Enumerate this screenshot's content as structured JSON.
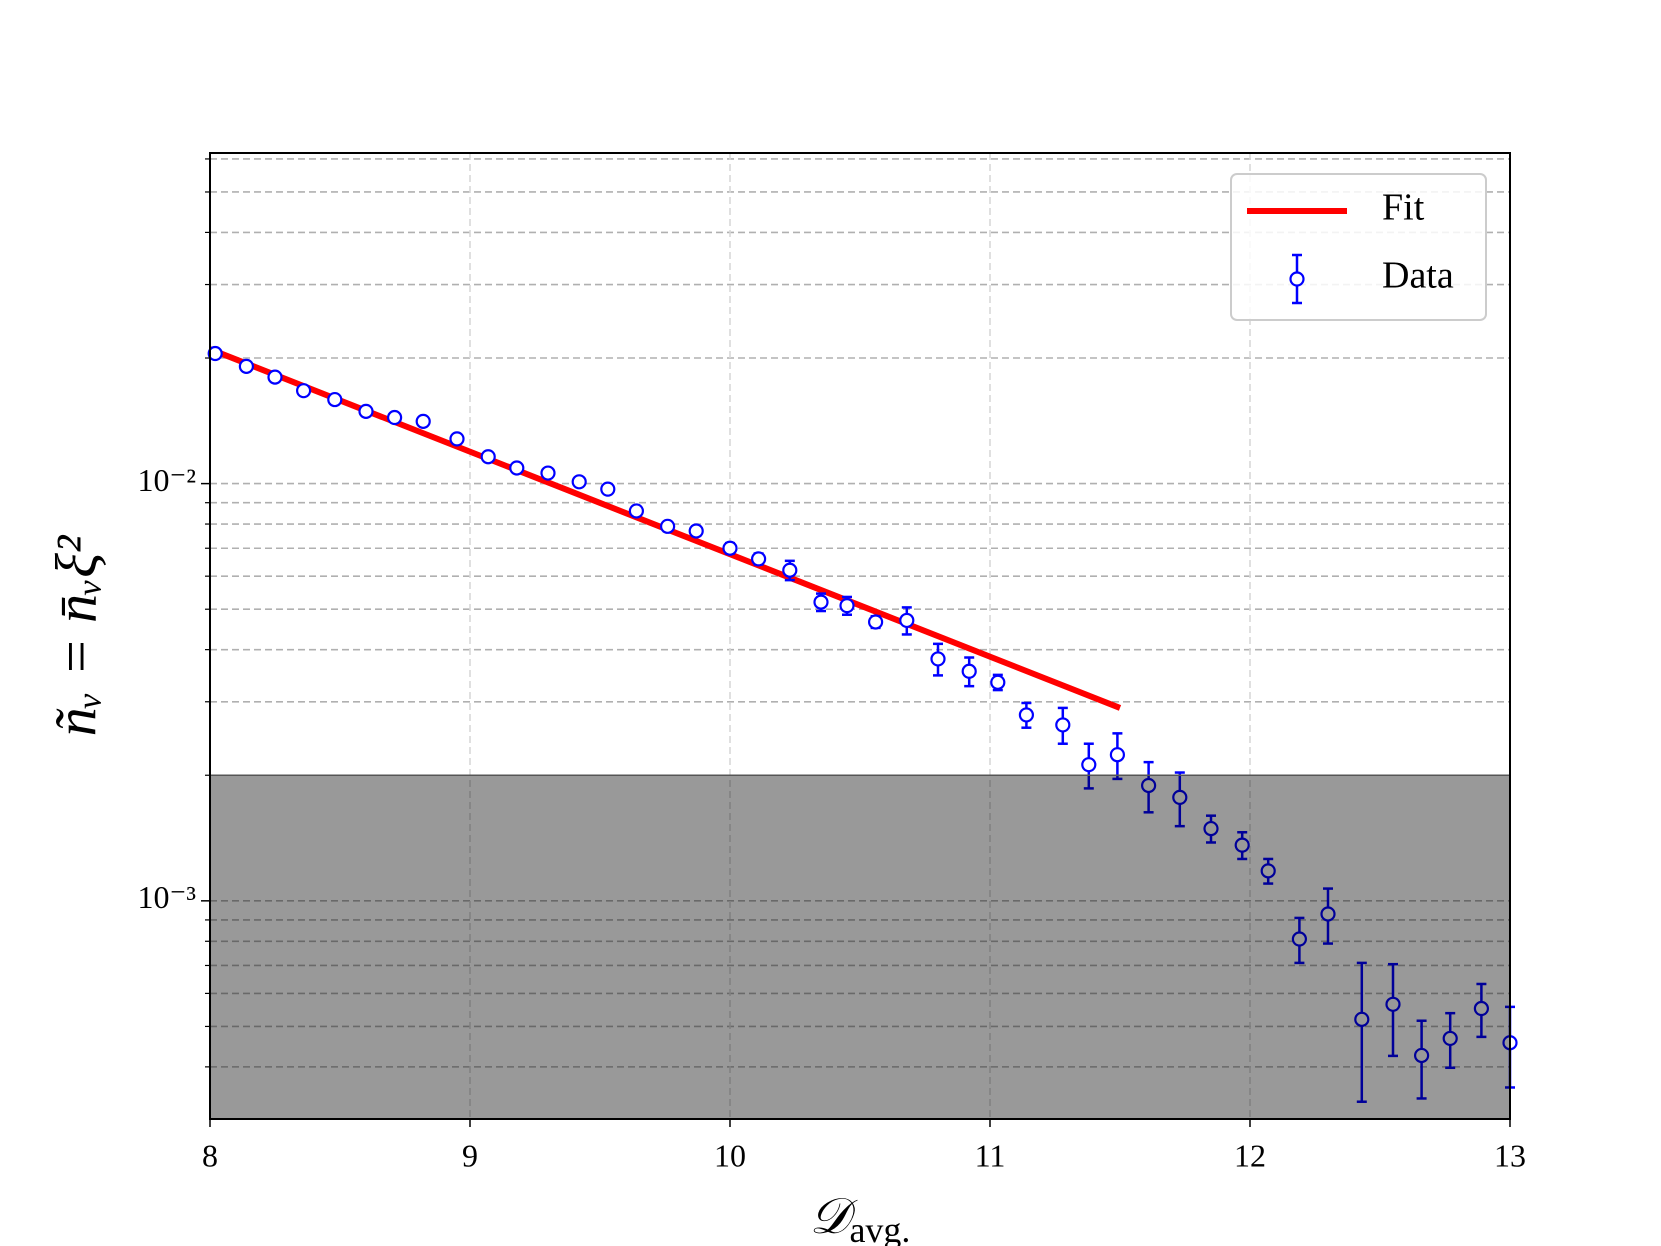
{
  "chart_data": {
    "type": "errorbar",
    "x_label": {
      "main": "𝒟",
      "sub": "avg."
    },
    "y_label": "ñᵥ = n̄ᵥξ²",
    "xlim": [
      8,
      13
    ],
    "xticks": [
      8,
      9,
      10,
      11,
      12,
      13
    ],
    "ylim": [
      0.0003,
      0.062
    ],
    "log_y": true,
    "yticks": [
      {
        "value": 0.001,
        "label": "10⁻³"
      },
      {
        "value": 0.01,
        "label": "10⁻²"
      }
    ],
    "minor_yticks": [
      0.0004,
      0.0005,
      0.0006,
      0.0007,
      0.0008,
      0.0009,
      0.002,
      0.003,
      0.004,
      0.005,
      0.006,
      0.007,
      0.008,
      0.009,
      0.02,
      0.03,
      0.04,
      0.05,
      0.06
    ],
    "grid": true,
    "legend": "upper right",
    "shaded_band": {
      "y_below": 0.002,
      "color": "#000000",
      "opacity": 0.4
    },
    "series": [
      {
        "name": "Fit",
        "type": "line",
        "color": "#ff0000",
        "x": [
          8,
          11.5
        ],
        "values": [
          0.021,
          0.0029
        ]
      },
      {
        "name": "Data",
        "type": "errorbar",
        "color": "#0000ff",
        "x": [
          8.02,
          8.14,
          8.25,
          8.36,
          8.48,
          8.6,
          8.71,
          8.82,
          8.95,
          9.07,
          9.18,
          9.3,
          9.42,
          9.53,
          9.64,
          9.76,
          9.87,
          10.0,
          10.11,
          10.23,
          10.35,
          10.45,
          10.56,
          10.68,
          10.8,
          10.92,
          11.03,
          11.14,
          11.28,
          11.38,
          11.49,
          11.61,
          11.73,
          11.85,
          11.97,
          12.07,
          12.19,
          12.3,
          12.43,
          12.55,
          12.66,
          12.77,
          12.89,
          13.0
        ],
        "values": [
          0.0205,
          0.0191,
          0.018,
          0.0167,
          0.0159,
          0.0149,
          0.0144,
          0.0141,
          0.0128,
          0.0116,
          0.0109,
          0.0106,
          0.0101,
          0.0097,
          0.0086,
          0.0079,
          0.0077,
          0.007,
          0.0066,
          0.0062,
          0.0052,
          0.0051,
          0.00466,
          0.0047,
          0.0038,
          0.00355,
          0.00334,
          0.00279,
          0.00264,
          0.00212,
          0.00224,
          0.00189,
          0.00177,
          0.00149,
          0.00136,
          0.00118,
          0.00081,
          0.00093,
          0.00052,
          0.000565,
          0.000426,
          0.000468,
          0.000552,
          0.000457
        ],
        "errors": [
          0.0003,
          0.0003,
          0.0003,
          0.0003,
          0.0003,
          0.0003,
          0.0003,
          0.0003,
          0.0002,
          0.0002,
          0.0002,
          0.0002,
          0.0002,
          0.0002,
          0.0002,
          0.0002,
          0.0002,
          0.0002,
          0.0002,
          0.00033,
          0.00025,
          0.00025,
          0.00015,
          0.00035,
          0.00033,
          0.00028,
          0.00014,
          0.00019,
          0.00026,
          0.00026,
          0.00028,
          0.00026,
          0.00026,
          0.00011,
          0.0001,
          8e-05,
          0.0001,
          0.00014,
          0.00019,
          0.00014,
          9e-05,
          7e-05,
          8e-05,
          0.0001
        ]
      }
    ]
  }
}
